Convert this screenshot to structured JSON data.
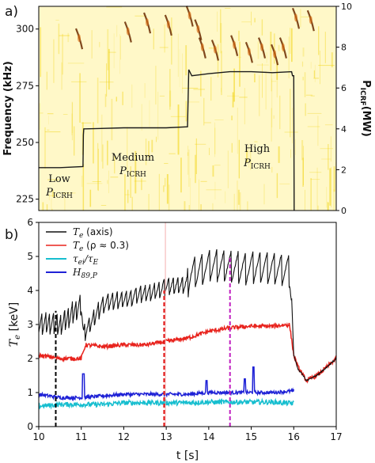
{
  "chart_data": [
    {
      "panel_label": "a)",
      "type": "heatmap",
      "ylabel_left": "Frequency (kHz)",
      "ylabel_right": "P",
      "ylabel_right_sub": "ICRF",
      "ylabel_right_unit": "(MW)",
      "xlim": [
        10,
        17
      ],
      "ylim_left": [
        220,
        310
      ],
      "ylim_right": [
        0,
        10
      ],
      "yticks_left": [
        225,
        250,
        275,
        300
      ],
      "yticks_right": [
        0,
        2,
        4,
        6,
        8,
        10
      ],
      "colors": {
        "background": "#fff8c8",
        "speckle": "#f0d000",
        "mode": "#6a2a00",
        "trace": "#1a1a1a"
      },
      "annotations": [
        {
          "line1": "Low",
          "p": "P",
          "sub": "ICRH",
          "t": 10.05,
          "f": 230
        },
        {
          "line1": "Medium",
          "p": "P",
          "sub": "ICRH",
          "t": 11.5,
          "f": 245
        },
        {
          "line1": "High",
          "p": "P",
          "sub": "ICRH",
          "t": 14.0,
          "f": 260
        }
      ],
      "series": [
        {
          "x": [
            10,
            10.5,
            11.04,
            11.05,
            11.06,
            11.1,
            12,
            13,
            13.5,
            13.53,
            13.6,
            14,
            14.5,
            15,
            15.5,
            15.95,
            15.97,
            16,
            16.01
          ],
          "y": [
            2.1,
            2.1,
            2.15,
            3.7,
            4.0,
            4.0,
            4.05,
            4.05,
            4.1,
            6.9,
            6.6,
            6.7,
            6.8,
            6.8,
            6.75,
            6.8,
            6.6,
            6.6,
            0
          ]
        }
      ],
      "mode_bursts": [
        {
          "t": 10.95,
          "f": 296
        },
        {
          "t": 12.1,
          "f": 299
        },
        {
          "t": 12.55,
          "f": 303
        },
        {
          "t": 13.05,
          "f": 302
        },
        {
          "t": 13.55,
          "f": 306
        },
        {
          "t": 13.75,
          "f": 300
        },
        {
          "t": 13.85,
          "f": 292
        },
        {
          "t": 14.15,
          "f": 291
        },
        {
          "t": 14.6,
          "f": 293
        },
        {
          "t": 14.95,
          "f": 290
        },
        {
          "t": 15.25,
          "f": 292
        },
        {
          "t": 15.55,
          "f": 289
        },
        {
          "t": 15.75,
          "f": 292
        },
        {
          "t": 16.05,
          "f": 305
        },
        {
          "t": 16.4,
          "f": 304
        }
      ]
    },
    {
      "panel_label": "b)",
      "type": "line",
      "xlabel": "t [s]",
      "ylabel": "T",
      "ylabel_sub": "e",
      "ylabel_unit": " [keV]",
      "xlim": [
        10,
        17
      ],
      "ylim": [
        0,
        6
      ],
      "xticks": [
        10,
        11,
        12,
        13,
        14,
        15,
        16,
        17
      ],
      "yticks": [
        0,
        1,
        2,
        3,
        4,
        5,
        6
      ],
      "legend_position": "top-left",
      "vlines": [
        {
          "x": 10.4,
          "color": "#000000",
          "ymax": 3.4
        },
        {
          "x": 12.95,
          "color": "#e01010",
          "ymax": 4.0
        },
        {
          "x": 14.5,
          "color": "#c020c0",
          "ymax": 5.0
        },
        {
          "x": 12.98,
          "color": "#f4b0b0",
          "ymax": 6.0
        }
      ],
      "series": [
        {
          "name": "T",
          "sub": "e",
          "suffix": " (axis)",
          "color": "#111111",
          "x": [
            10,
            10.5,
            11,
            11.05,
            11.5,
            12,
            12.5,
            13,
            13.5,
            13.55,
            14,
            14.5,
            15,
            15.5,
            15.9,
            15.95,
            16,
            16.1,
            16.3,
            16.6,
            17
          ],
          "y": [
            3.0,
            3.0,
            3.6,
            2.7,
            3.6,
            3.75,
            3.9,
            4.1,
            4.2,
            4.5,
            4.7,
            4.7,
            4.65,
            4.65,
            4.6,
            3.8,
            2.1,
            1.7,
            1.35,
            1.55,
            2.0
          ]
        },
        {
          "name": "T",
          "sub": "e",
          "suffix": " (ρ ≈ 0.3)",
          "color": "#e8231d",
          "x": [
            10,
            10.5,
            11,
            11.1,
            11.5,
            12,
            12.5,
            13,
            13.5,
            14,
            14.5,
            15,
            15.5,
            15.9,
            16,
            16.1,
            16.3,
            16.6,
            17
          ],
          "y": [
            2.1,
            2.0,
            2.0,
            2.4,
            2.35,
            2.4,
            2.4,
            2.5,
            2.6,
            2.8,
            2.9,
            2.95,
            2.95,
            3.0,
            2.1,
            1.75,
            1.35,
            1.55,
            2.0
          ]
        },
        {
          "name": "τ",
          "sub": "ei",
          "suffix": "/τ",
          "suffix_sub": "E",
          "color": "#17becf",
          "x": [
            10,
            10.5,
            11,
            11.5,
            12,
            12.5,
            13,
            13.5,
            14,
            14.5,
            15,
            15.5,
            16
          ],
          "y": [
            0.6,
            0.65,
            0.65,
            0.65,
            0.7,
            0.7,
            0.7,
            0.7,
            0.72,
            0.72,
            0.72,
            0.72,
            0.68
          ]
        },
        {
          "name": "H",
          "sub": "89,P",
          "suffix": "",
          "color": "#1f22d6",
          "x": [
            10,
            10.5,
            11,
            11.5,
            12,
            12.5,
            13,
            13.5,
            14,
            14.5,
            15,
            15.5,
            16
          ],
          "y": [
            0.95,
            0.85,
            0.85,
            0.9,
            0.95,
            0.95,
            0.95,
            0.95,
            1.0,
            1.0,
            1.0,
            1.0,
            1.05
          ]
        }
      ]
    }
  ]
}
